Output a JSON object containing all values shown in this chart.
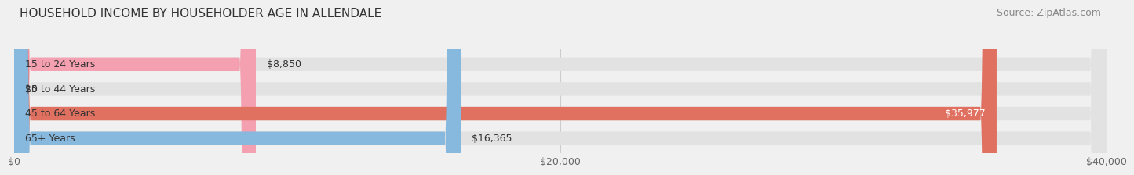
{
  "title": "HOUSEHOLD INCOME BY HOUSEHOLDER AGE IN ALLENDALE",
  "source": "Source: ZipAtlas.com",
  "categories": [
    "15 to 24 Years",
    "25 to 44 Years",
    "45 to 64 Years",
    "65+ Years"
  ],
  "values": [
    8850,
    0,
    35977,
    16365
  ],
  "bar_colors": [
    "#f4a0b0",
    "#e8c97a",
    "#e07060",
    "#87b8de"
  ],
  "label_colors": [
    "#333333",
    "#333333",
    "#ffffff",
    "#333333"
  ],
  "value_labels": [
    "$8,850",
    "$0",
    "$35,977",
    "$16,365"
  ],
  "xlim": [
    0,
    40000
  ],
  "xticks": [
    0,
    20000,
    40000
  ],
  "xtick_labels": [
    "$0",
    "$20,000",
    "$40,000"
  ],
  "background_color": "#f0f0f0",
  "bar_background_color": "#e2e2e2",
  "title_fontsize": 11,
  "source_fontsize": 9,
  "tick_fontsize": 9,
  "label_fontsize": 9,
  "bar_height": 0.55
}
